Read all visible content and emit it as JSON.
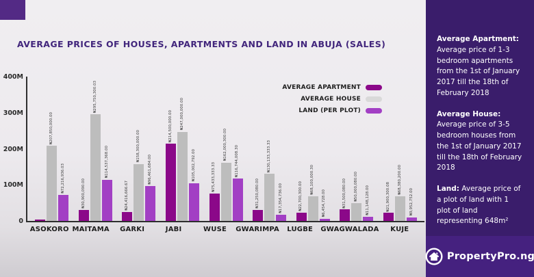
{
  "page": {
    "title": "AVERAGE PRICES OF HOUSES, APARTMENTS AND LAND IN ABUJA (SALES)"
  },
  "colors": {
    "apartment": "#8b0889",
    "house": "#bdbdbd",
    "house_legend": "#d9d9d9",
    "land": "#a23fc4",
    "sidebar_bg": "#3a1d6b",
    "logo_band_bg": "#45217f",
    "corner_square": "#532a85",
    "title_text": "#42267c"
  },
  "legend": [
    {
      "label": "AVERAGE APARTMENT",
      "color": "#8b0889"
    },
    {
      "label": "AVERAGE HOUSE",
      "color": "#d9d9d9"
    },
    {
      "label": "LAND (PER PLOT)",
      "color": "#a23fc4"
    }
  ],
  "chart_data": {
    "type": "bar",
    "title": "AVERAGE PRICES OF HOUSES, APARTMENTS AND LAND IN ABUJA (SALES)",
    "unit": "millions of Naira (₦)",
    "ylim": [
      0,
      400
    ],
    "yticks": [
      "400M",
      "300M",
      "200M",
      "100M",
      "0"
    ],
    "grid": false,
    "legend_position": "top-right",
    "categories": [
      "ASOKORO",
      "MAITAMA",
      "GARKI",
      "JABI",
      "WUSE",
      "GWARIMPA",
      "LUGBE",
      "GWAGWALADA",
      "KUJE"
    ],
    "series": [
      {
        "name": "AVERAGE APARTMENT",
        "color": "#8b0889",
        "values": [
          4,
          30.9,
          24.4,
          214.5,
          75.4,
          31.3,
          22.7,
          31.5,
          21.9
        ],
        "labels": [
          "",
          "₦30,900,090.00",
          "₦24,416,666.67",
          "₦214,500,000.00",
          "₦75,433,333.33",
          "₦31,250,080.00",
          "₦22,700,300.00",
          "₦31,500,080.00",
          "₦21,900,300.08"
        ]
      },
      {
        "name": "AVERAGE HOUSE",
        "color": "#bdbdbd",
        "values": [
          207.9,
          295.8,
          158.3,
          247,
          162,
          130.1,
          68.1,
          50,
          68.4
        ],
        "labels": [
          "₦207,850,000.00",
          "₦295,750,300.03",
          "₦158,300,000.00",
          "₦247,000,000.00",
          "₦162,000,300.00",
          "₦130,133,333.33",
          "₦68,100,000.30",
          "₦50,000,080.00",
          "₦68,380,200.00"
        ]
      },
      {
        "name": "LAND (PER PLOT)",
        "color": "#a23fc4",
        "values": [
          72.2,
          114.5,
          96.5,
          105,
          116.7,
          17.4,
          6.5,
          11.1,
          10
        ],
        "labels": [
          "₦72,216,936.03",
          "₦114,537,368.00",
          "₦96,461,684.00",
          "₦105,002,792.00",
          "₦116,744,008.30",
          "₦17,354,736.00",
          "₦6,454,728.00",
          "₦11,148,128.00",
          "₦9,952,752.00"
        ]
      }
    ]
  },
  "sidebar": {
    "paragraphs": [
      {
        "lead": "Average Apartment:",
        "text": " Average price of 1-3 bedroom apartments from the 1st of January 2017 till the 18th of February 2018"
      },
      {
        "lead": "Average House:",
        "text": " Average price of  3-5 bedroom houses from the 1st of January 2017 till the 18th of February 2018"
      },
      {
        "lead": "Land:",
        "text": " Average price of a plot of land with 1 plot of land representing 648m²"
      }
    ],
    "brand": "PropertyPro.ng"
  }
}
